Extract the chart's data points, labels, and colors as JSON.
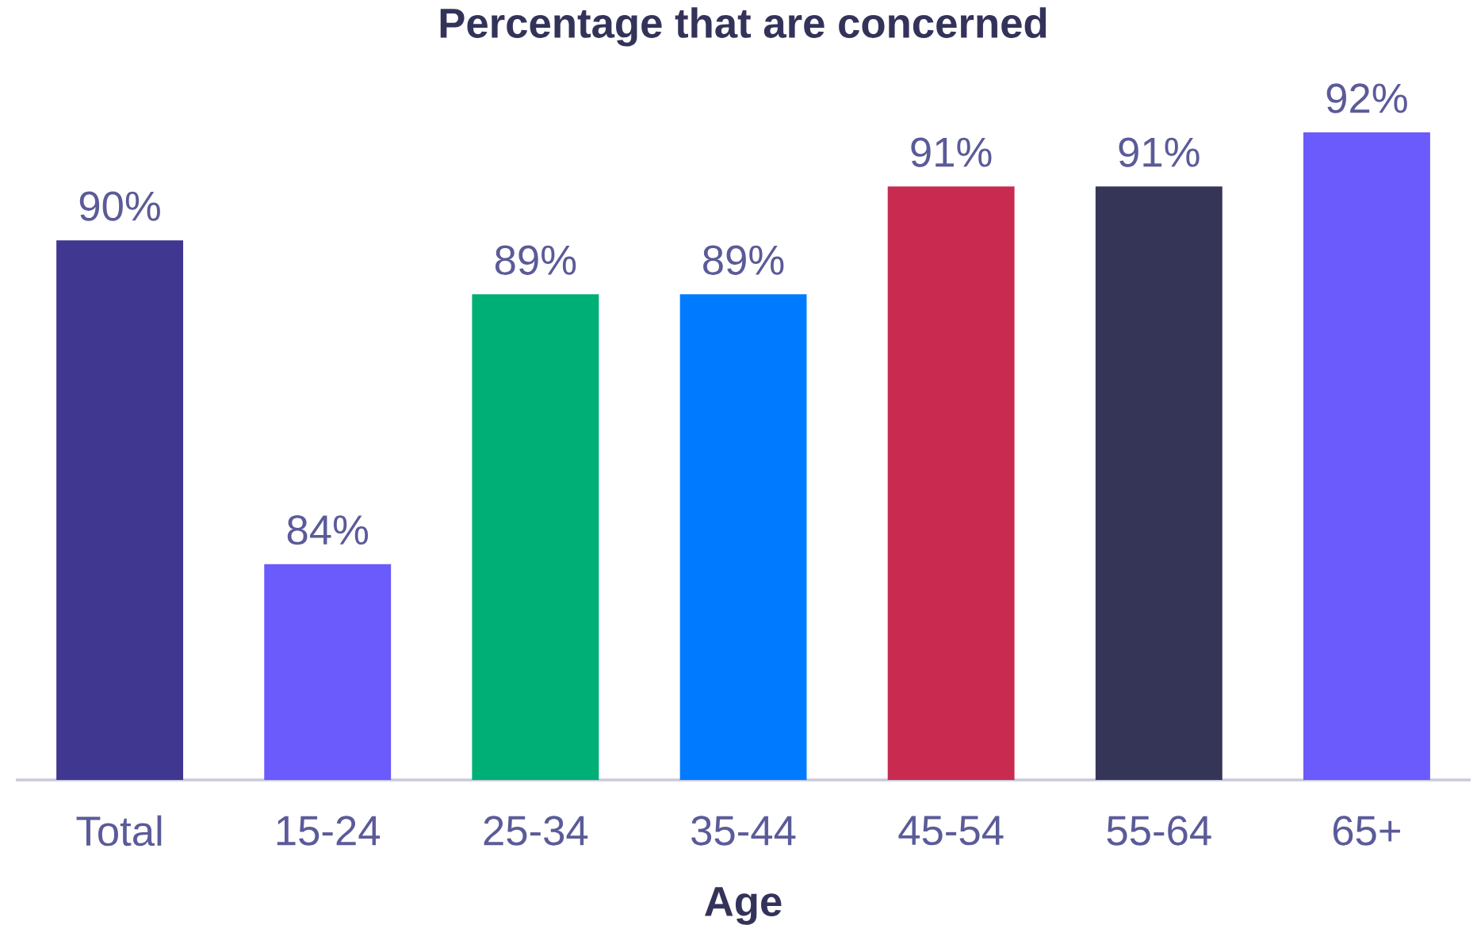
{
  "chart_data": {
    "type": "bar",
    "title": "Percentage that are concerned",
    "xlabel": "Age",
    "categories": [
      "Total",
      "15-24",
      "25-34",
      "35-44",
      "45-54",
      "55-64",
      "65+"
    ],
    "values": [
      90,
      84,
      89,
      89,
      91,
      91,
      92
    ],
    "value_labels": [
      "90%",
      "84%",
      "89%",
      "89%",
      "91%",
      "91%",
      "92%"
    ],
    "colors": [
      "#3f3790",
      "#6b5afc",
      "#00af75",
      "#007bff",
      "#c92b50",
      "#353657",
      "#6b5afc"
    ],
    "ylim": [
      80,
      92
    ],
    "tick_labels": "x"
  }
}
